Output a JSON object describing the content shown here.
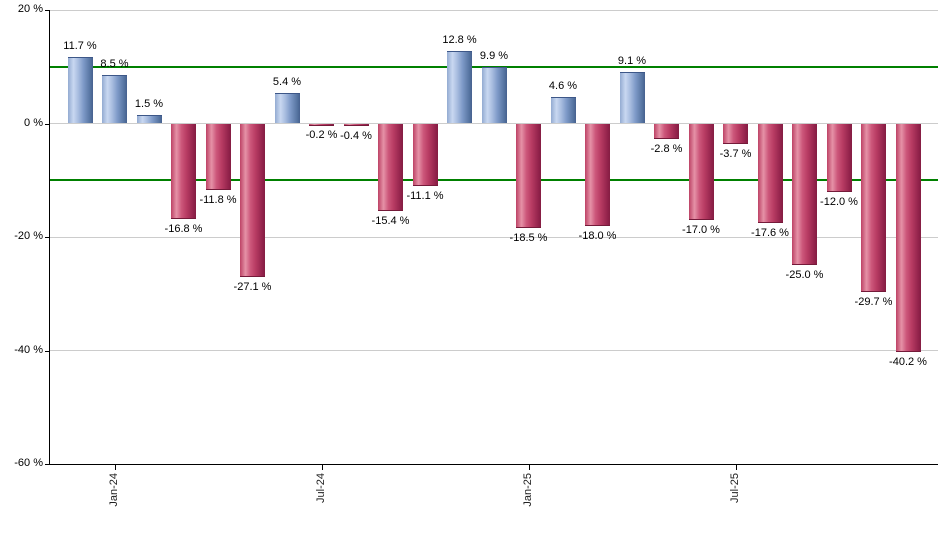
{
  "page": {
    "background": "#ffffff"
  },
  "chart_data": {
    "type": "bar",
    "title": "",
    "xlabel": "",
    "ylabel": "",
    "unit": "%",
    "ylim": [
      -60,
      20
    ],
    "grid": "horizontal",
    "legend": null,
    "y_ticks": [
      {
        "value": 20,
        "label": "20 %"
      },
      {
        "value": 0,
        "label": "0 %"
      },
      {
        "value": -20,
        "label": "-20 %"
      },
      {
        "value": -40,
        "label": "-40 %"
      },
      {
        "value": -60,
        "label": "-60 %"
      }
    ],
    "gridline_values": [
      20,
      0,
      -20,
      -40
    ],
    "reference_lines": [
      {
        "value": 10
      },
      {
        "value": -10
      }
    ],
    "x_ticks": [
      {
        "bar_index": 1,
        "label": "Jan-24"
      },
      {
        "bar_index": 7,
        "label": "Jul-24"
      },
      {
        "bar_index": 13,
        "label": "Jan-25"
      },
      {
        "bar_index": 19,
        "label": "Jul-25"
      }
    ],
    "values": [
      11.7,
      8.5,
      1.5,
      -16.8,
      -11.8,
      -27.1,
      5.4,
      -0.2,
      -0.4,
      -15.4,
      -11.1,
      12.8,
      9.9,
      -18.5,
      4.6,
      -18.0,
      9.1,
      -2.8,
      -17.0,
      -3.7,
      -17.6,
      -25.0,
      -12.0,
      -29.7,
      -40.2
    ],
    "value_labels": [
      "11.7 %",
      "8.5 %",
      "1.5 %",
      "-16.8 %",
      "-11.8 %",
      "-27.1 %",
      "5.4 %",
      "-0.2 %",
      "-0.4 %",
      "-15.4 %",
      "-11.1 %",
      "12.8 %",
      "9.9 %",
      "-18.5 %",
      "4.6 %",
      "-18.0 %",
      "9.1 %",
      "-2.8 %",
      "-17.0 %",
      "-3.7 %",
      "-17.6 %",
      "-25.0 %",
      "-12.0 %",
      "-29.7 %",
      "-40.2 %"
    ],
    "colors": {
      "positive_bar": "#7e9ac8",
      "negative_bar": "#c04468",
      "reference_line": "#008000",
      "gridline": "#cccccc",
      "axis": "#000000"
    }
  }
}
